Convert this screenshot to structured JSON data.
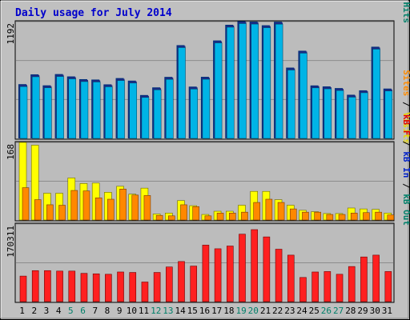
{
  "chart_data": [
    {
      "type": "bar",
      "title": "Daily usage for July 2014",
      "y_max_label": "1192",
      "right_label": [
        {
          "text": "Pages",
          "color": "#00a0c8"
        },
        {
          "text": " / ",
          "color": "#000000"
        },
        {
          "text": "Files",
          "color": "#0020c8"
        },
        {
          "text": " / ",
          "color": "#000000"
        },
        {
          "text": "Hits",
          "color": "#00806a"
        }
      ],
      "categories": [
        "1",
        "2",
        "3",
        "4",
        "5",
        "6",
        "7",
        "8",
        "9",
        "10",
        "11",
        "12",
        "13",
        "14",
        "15",
        "16",
        "17",
        "18",
        "19",
        "20",
        "21",
        "22",
        "23",
        "24",
        "25",
        "26",
        "27",
        "28",
        "29",
        "30",
        "31"
      ],
      "series": [
        {
          "name": "Hits",
          "color": "#00307a",
          "values": [
            537,
            637,
            525,
            640,
            616,
            588,
            584,
            535,
            599,
            573,
            426,
            504,
            611,
            935,
            512,
            612,
            983,
            1143,
            1180,
            1175,
            1138,
            1174,
            706,
            878,
            524,
            514,
            497,
            429,
            474,
            919,
            492
          ]
        },
        {
          "name": "Files",
          "color": "#1e2a86",
          "values": [
            537,
            637,
            525,
            640,
            616,
            588,
            584,
            535,
            599,
            573,
            426,
            504,
            611,
            935,
            512,
            612,
            983,
            1143,
            1180,
            1175,
            1138,
            1174,
            706,
            878,
            524,
            514,
            497,
            429,
            474,
            919,
            492
          ]
        },
        {
          "name": "Pages",
          "color": "#00b4e6",
          "values": [
            537,
            637,
            525,
            640,
            616,
            588,
            584,
            535,
            599,
            573,
            426,
            504,
            611,
            935,
            512,
            612,
            983,
            1143,
            1180,
            1175,
            1138,
            1174,
            706,
            878,
            524,
            514,
            497,
            429,
            474,
            919,
            492
          ]
        }
      ],
      "ylim": [
        0,
        1192
      ]
    },
    {
      "type": "bar",
      "y_max_label": "168",
      "right_label": [
        {
          "text": "Sites",
          "color": "#ff8c00"
        },
        {
          "text": " / ",
          "color": "#000000"
        },
        {
          "text": "Visits",
          "color": "#e8d800"
        }
      ],
      "categories": [
        "1",
        "2",
        "3",
        "4",
        "5",
        "6",
        "7",
        "8",
        "9",
        "10",
        "11",
        "12",
        "13",
        "14",
        "15",
        "16",
        "17",
        "18",
        "19",
        "20",
        "21",
        "22",
        "23",
        "24",
        "25",
        "26",
        "27",
        "28",
        "29",
        "30",
        "31"
      ],
      "series": [
        {
          "name": "Visits",
          "color": "#ffff00",
          "values": [
            168,
            162,
            58,
            58,
            91,
            79,
            80,
            60,
            73,
            56,
            69,
            13,
            15,
            42,
            31,
            12,
            19,
            19,
            32,
            62,
            62,
            44,
            32,
            21,
            18,
            14,
            14,
            26,
            24,
            23,
            15
          ]
        },
        {
          "name": "Sites",
          "color": "#ff8800",
          "values": [
            70,
            44,
            33,
            32,
            64,
            63,
            48,
            45,
            67,
            54,
            53,
            10,
            9,
            33,
            29,
            9,
            15,
            15,
            17,
            38,
            45,
            38,
            24,
            17,
            17,
            12,
            12,
            15,
            16,
            17,
            11
          ]
        }
      ],
      "ylim": [
        0,
        168
      ]
    },
    {
      "type": "bar",
      "y_max_label": "170311",
      "right_label": [
        {
          "text": "kB F",
          "color": "#e00000"
        },
        {
          "text": " / ",
          "color": "#000000"
        },
        {
          "text": "kB In",
          "color": "#0020c8"
        },
        {
          "text": " / ",
          "color": "#000000"
        },
        {
          "text": "kB Out",
          "color": "#00806a"
        }
      ],
      "categories": [
        "1",
        "2",
        "3",
        "4",
        "5",
        "6",
        "7",
        "8",
        "9",
        "10",
        "11",
        "12",
        "13",
        "14",
        "15",
        "16",
        "17",
        "18",
        "19",
        "20",
        "21",
        "22",
        "23",
        "24",
        "25",
        "26",
        "27",
        "28",
        "29",
        "30",
        "31"
      ],
      "series": [
        {
          "name": "kB F",
          "color": "#ff2020",
          "values": [
            56000,
            68000,
            68000,
            67000,
            67000,
            62000,
            61000,
            60000,
            65000,
            64000,
            43000,
            64000,
            76000,
            88000,
            78000,
            124000,
            116000,
            122000,
            148000,
            158000,
            142000,
            115000,
            102000,
            53000,
            65000,
            66000,
            60000,
            77000,
            98000,
            102000,
            66000
          ]
        }
      ],
      "ylim": [
        0,
        170311
      ]
    }
  ],
  "x_tick_colors": {
    "weekday": "#000000",
    "weekend": "#00806a"
  },
  "weekend_days": [
    5,
    6,
    12,
    13,
    19,
    20,
    26,
    27
  ]
}
